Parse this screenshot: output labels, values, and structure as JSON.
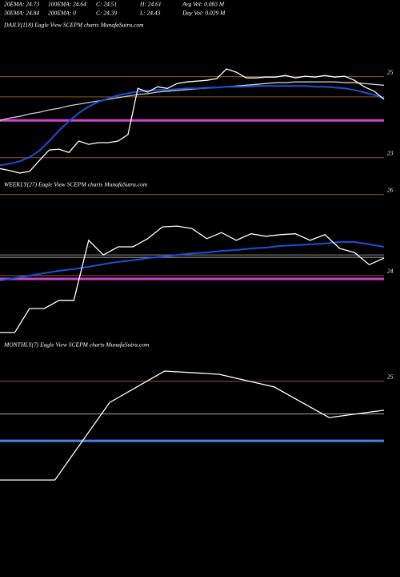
{
  "header": [
    "20EMA: 24.73",
    "100EMA: 24.64",
    "C: 24.51",
    "H: 24.61",
    "Avg Vol: 0.083 M",
    "30EMA: 24.84",
    "200EMA: 0",
    "C: 24.39",
    "L: 24.43",
    "Day Vol: 0.029 M"
  ],
  "chart_data": [
    {
      "type": "line",
      "title": "DAILY(118) Eagle  View  SCEPM charts MunafaSutra.com",
      "ylim": [
        22.5,
        26.2
      ],
      "yticks": [
        23,
        25
      ],
      "tick_color": "#8b5a1e",
      "hlines": [
        {
          "value": 24.5,
          "color": "#8b5a1e"
        },
        {
          "value": 23.92,
          "color": "#cc44cc"
        }
      ],
      "series": [
        {
          "color": "#cccccc",
          "values": [
            23.92,
            23.98,
            24.02,
            24.08,
            24.12,
            24.18,
            24.22,
            24.28,
            24.32,
            24.36,
            24.4,
            24.44,
            24.48,
            24.52,
            24.56,
            24.58,
            24.62,
            24.64,
            24.66,
            24.68,
            24.7,
            24.72,
            24.73,
            24.75,
            24.77,
            24.79,
            24.81,
            24.83,
            24.85,
            24.85,
            24.87,
            24.87,
            24.87,
            24.87,
            24.87,
            24.85,
            24.85,
            24.83,
            24.81,
            24.79
          ]
        },
        {
          "color": "#1f4fd8",
          "values": [
            22.81,
            22.85,
            22.91,
            23.01,
            23.17,
            23.41,
            23.67,
            23.9,
            24.1,
            24.26,
            24.38,
            24.46,
            24.54,
            24.59,
            24.63,
            24.65,
            24.67,
            24.67,
            24.69,
            24.71,
            24.71,
            24.73,
            24.73,
            24.75,
            24.75,
            24.75,
            24.77,
            24.77,
            24.77,
            24.77,
            24.77,
            24.77,
            24.75,
            24.75,
            24.73,
            24.71,
            24.67,
            24.61,
            24.55,
            24.47
          ]
        },
        {
          "color": "#ffffff",
          "values": [
            22.73,
            22.68,
            22.62,
            22.66,
            22.93,
            23.19,
            23.21,
            23.13,
            23.41,
            23.33,
            23.37,
            23.37,
            23.41,
            23.57,
            24.71,
            24.62,
            24.75,
            24.71,
            24.83,
            24.87,
            24.89,
            24.91,
            24.95,
            25.19,
            25.11,
            24.97,
            24.97,
            24.99,
            24.99,
            25.03,
            24.97,
            25.01,
            24.99,
            25.03,
            24.99,
            25.01,
            24.91,
            24.75,
            24.64,
            24.44
          ]
        }
      ]
    },
    {
      "type": "line",
      "title": "WEEKLY(27) Eagle  View  SCEPM charts MunafaSutra.com",
      "ylim": [
        22.4,
        26.15
      ],
      "yticks": [
        24,
        26
      ],
      "tick_color": "#8b5a1e",
      "hlines": [
        {
          "value": 24.45,
          "color": "#aaaaaa"
        },
        {
          "value": 24.51,
          "color": "#888888"
        },
        {
          "value": 23.92,
          "color": "#cc44cc"
        }
      ],
      "series": [
        {
          "color": "#1f4fd8",
          "values": [
            23.88,
            23.94,
            24.0,
            24.06,
            24.12,
            24.16,
            24.22,
            24.28,
            24.34,
            24.38,
            24.43,
            24.47,
            24.51,
            24.55,
            24.57,
            24.61,
            24.63,
            24.67,
            24.69,
            24.73,
            24.75,
            24.77,
            24.79,
            24.83,
            24.83,
            24.77,
            24.71
          ]
        },
        {
          "color": "#ffffff",
          "values": [
            22.6,
            22.6,
            23.19,
            23.19,
            23.39,
            23.39,
            24.87,
            24.51,
            24.71,
            24.71,
            24.91,
            25.2,
            25.22,
            25.16,
            24.91,
            25.06,
            24.87,
            25.03,
            24.97,
            25.01,
            25.03,
            24.87,
            25.01,
            24.67,
            24.57,
            24.27,
            24.43
          ]
        }
      ]
    },
    {
      "type": "line",
      "title": "MONTHLY(7) Eagle  View  SCEPM charts MunafaSutra.com",
      "ylim": [
        20.4,
        25.8
      ],
      "yticks": [
        25
      ],
      "tick_color": "#8b5a1e",
      "hlines": [
        {
          "value": 24.2,
          "color": "#aaaaaa"
        },
        {
          "value": 23.54,
          "color": "#4a7fe0"
        }
      ],
      "series": [
        {
          "color": "#ffffff",
          "values": [
            22.58,
            22.58,
            24.48,
            25.25,
            25.17,
            24.86,
            24.11,
            24.29
          ]
        }
      ]
    }
  ]
}
